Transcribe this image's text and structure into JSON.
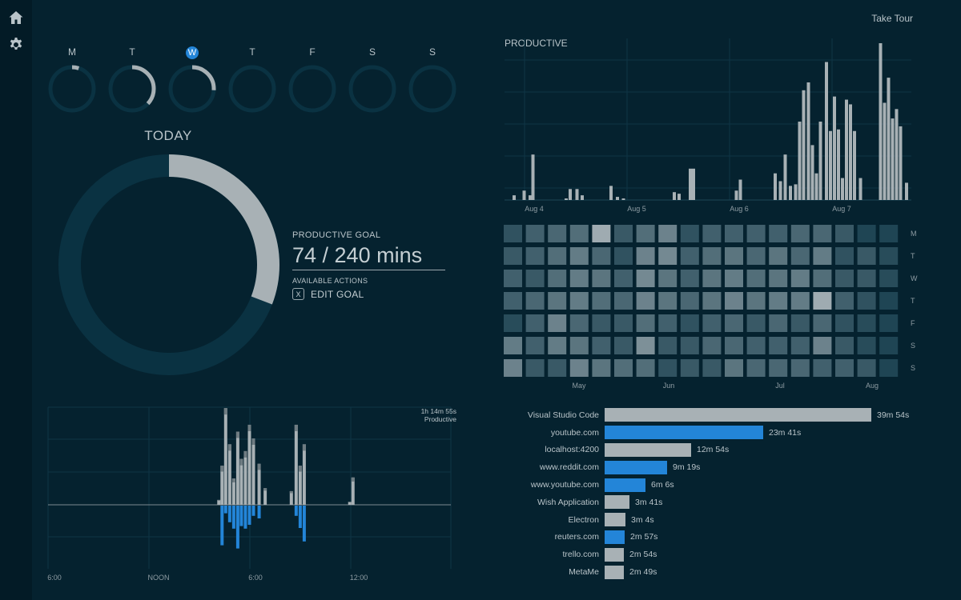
{
  "sidebar": {
    "items": [
      {
        "icon": "home-icon"
      },
      {
        "icon": "gear-icon"
      }
    ]
  },
  "header": {
    "take_tour": "Take Tour"
  },
  "week": {
    "days": [
      {
        "label": "M",
        "progress": 0.05,
        "active": false
      },
      {
        "label": "T",
        "progress": 0.37,
        "active": false
      },
      {
        "label": "W",
        "progress": 0.26,
        "active": true
      },
      {
        "label": "T",
        "progress": 0,
        "active": false
      },
      {
        "label": "F",
        "progress": 0,
        "active": false
      },
      {
        "label": "S",
        "progress": 0,
        "active": false
      },
      {
        "label": "S",
        "progress": 0,
        "active": false
      }
    ]
  },
  "today": {
    "title": "TODAY",
    "progress": 0.3083,
    "goal_label": "PRODUCTIVE GOAL",
    "goal_value": "74 / 240 mins",
    "actions_label": "AVAILABLE ACTIONS",
    "edit_goal_key": "X",
    "edit_goal_label": "EDIT GOAL"
  },
  "productive_chart": {
    "title": "PRODUCTIVE",
    "x_labels": [
      "Aug 4",
      "Aug 5",
      "Aug 6",
      "Aug 7"
    ],
    "values": [
      0,
      1,
      0,
      4,
      0,
      3,
      2,
      0,
      0,
      1,
      0,
      0,
      0,
      0,
      0,
      0,
      9,
      0,
      0,
      0,
      0,
      0,
      0,
      0,
      0,
      0,
      0,
      0,
      0,
      0,
      0,
      0,
      0,
      2,
      0,
      0,
      0,
      0,
      0,
      0,
      0,
      0,
      0,
      0,
      1,
      0,
      3,
      2,
      0,
      0,
      0,
      0,
      0,
      2,
      0,
      0,
      0,
      0,
      1,
      0,
      0,
      0,
      0,
      0,
      0,
      0,
      0,
      0,
      0,
      0,
      0,
      0,
      0,
      0,
      0,
      0,
      0,
      0,
      0,
      0,
      0,
      0,
      0,
      0,
      0,
      0,
      0,
      0,
      0,
      0,
      0,
      0,
      0,
      0,
      0,
      0,
      0,
      0,
      0,
      0,
      0,
      0,
      0,
      0,
      0,
      0,
      0,
      0,
      0,
      0,
      2,
      0,
      0,
      0,
      0,
      0,
      0,
      0,
      0,
      0,
      0,
      0,
      0,
      0,
      0,
      0,
      0,
      0,
      0,
      0,
      0,
      0,
      0,
      0,
      0,
      0,
      0,
      0,
      0,
      0,
      0,
      0,
      0,
      0,
      0,
      0,
      0,
      0,
      0,
      0,
      0,
      0,
      0,
      0,
      0,
      0,
      0,
      0,
      0,
      0,
      0,
      0,
      0,
      0,
      0,
      0,
      0,
      0,
      0,
      0,
      0,
      0,
      0,
      0,
      0,
      0,
      0,
      0,
      0,
      0,
      0,
      0,
      0,
      0,
      0,
      0,
      0,
      0,
      0,
      0,
      0,
      0,
      0,
      0,
      0,
      0,
      0,
      0,
      0,
      0,
      0,
      0,
      0,
      0,
      0,
      0,
      0,
      0,
      0,
      0,
      2,
      0,
      0,
      0,
      0,
      0,
      0,
      0,
      0,
      0,
      0,
      0,
      0,
      0,
      0,
      0,
      0,
      0,
      0,
      0,
      0,
      0,
      0,
      0,
      0,
      0,
      0,
      0,
      0,
      0,
      0,
      0,
      0,
      0,
      0,
      0,
      0,
      0,
      0,
      0,
      0,
      0,
      0,
      0,
      0,
      0,
      0,
      0,
      0,
      0,
      0,
      0,
      0,
      0,
      0,
      0,
      0,
      0,
      0,
      0,
      0,
      0,
      0,
      0,
      0,
      0,
      0,
      0,
      0,
      0,
      0,
      0,
      0,
      0,
      0,
      0,
      0,
      0,
      0,
      0,
      0,
      0,
      0,
      0,
      0,
      0,
      0,
      0,
      0,
      0,
      0,
      0,
      0,
      0,
      0,
      0,
      0,
      0,
      0,
      0,
      0,
      0,
      0,
      0,
      0,
      0,
      0,
      0,
      0,
      0,
      0,
      0,
      0,
      0,
      0,
      0,
      0,
      0,
      0,
      0,
      0,
      0,
      0,
      0,
      0,
      0,
      0,
      0,
      0,
      0,
      0,
      0,
      0,
      0,
      0,
      0,
      0,
      0,
      0,
      0,
      0,
      0,
      0,
      0,
      0,
      0,
      0,
      0,
      0,
      0,
      0,
      0,
      0,
      0,
      0,
      0,
      0,
      0,
      0,
      0,
      0,
      0,
      0,
      0,
      0,
      0,
      0,
      0,
      0,
      0,
      0,
      0,
      0,
      0,
      0,
      0,
      0,
      0,
      0,
      0,
      0,
      0,
      0,
      0,
      0,
      0,
      0,
      0,
      0,
      0,
      0,
      0,
      0,
      0,
      0,
      0,
      0,
      0,
      0,
      0,
      0,
      0,
      0,
      0,
      0,
      0,
      0,
      0,
      0,
      0,
      0,
      0,
      0,
      0,
      0,
      0,
      0,
      0,
      0,
      0,
      0,
      0,
      0,
      0,
      0,
      0,
      0,
      0,
      0,
      0,
      0,
      0,
      0,
      0,
      0,
      0,
      0,
      0,
      0,
      0,
      0,
      0,
      0,
      0,
      0,
      0,
      0,
      0,
      0,
      0,
      0,
      0,
      0,
      0,
      0,
      0,
      0,
      0,
      0,
      0,
      0,
      0,
      0,
      0,
      0,
      0,
      0,
      0,
      0,
      0,
      0,
      0,
      0,
      0,
      0,
      0,
      0,
      0,
      0,
      0,
      0,
      0,
      0,
      0,
      0,
      0,
      0,
      0,
      0,
      0,
      0,
      0,
      0,
      0,
      0,
      0,
      0,
      0,
      0,
      0,
      0,
      0,
      0,
      0,
      0,
      0,
      0,
      0,
      0,
      0,
      0,
      0,
      0,
      0,
      0,
      0,
      0,
      0,
      0,
      0,
      0,
      0,
      0,
      0,
      0,
      0,
      0,
      0,
      0,
      0,
      0,
      0,
      0,
      0,
      0,
      0,
      0,
      0,
      0,
      0,
      0,
      0,
      0,
      0,
      0,
      0,
      0,
      0,
      0,
      0,
      0,
      0,
      0,
      0,
      0,
      0,
      0,
      0,
      0,
      0,
      0,
      0,
      0,
      0,
      0,
      0,
      0,
      0,
      0,
      0,
      0,
      0,
      0,
      0,
      0,
      0
    ]
  },
  "productive_bars": [
    {
      "x": 0.02,
      "v": 0.03
    },
    {
      "x": 0.045,
      "v": 0.06
    },
    {
      "x": 0.06,
      "v": 0.03
    },
    {
      "x": 0.067,
      "v": 0.29
    },
    {
      "x": 0.15,
      "v": 0.01
    },
    {
      "x": 0.16,
      "v": 0.07
    },
    {
      "x": 0.177,
      "v": 0.07
    },
    {
      "x": 0.19,
      "v": 0.03
    },
    {
      "x": 0.262,
      "v": 0.09
    },
    {
      "x": 0.278,
      "v": 0.02
    },
    {
      "x": 0.293,
      "v": 0.01
    },
    {
      "x": 0.42,
      "v": 0.05
    },
    {
      "x": 0.432,
      "v": 0.04
    },
    {
      "x": 0.46,
      "v": 0.2
    },
    {
      "x": 0.468,
      "v": 0.2
    },
    {
      "x": 0.575,
      "v": 0.06
    },
    {
      "x": 0.585,
      "v": 0.13
    },
    {
      "x": 0.672,
      "v": 0.17
    },
    {
      "x": 0.685,
      "v": 0.12
    },
    {
      "x": 0.697,
      "v": 0.29
    },
    {
      "x": 0.71,
      "v": 0.09
    },
    {
      "x": 0.723,
      "v": 0.1
    },
    {
      "x": 0.733,
      "v": 0.5
    },
    {
      "x": 0.743,
      "v": 0.7
    },
    {
      "x": 0.755,
      "v": 0.75
    },
    {
      "x": 0.765,
      "v": 0.35
    },
    {
      "x": 0.775,
      "v": 0.17
    },
    {
      "x": 0.785,
      "v": 0.5
    },
    {
      "x": 0.8,
      "v": 0.88
    },
    {
      "x": 0.81,
      "v": 0.44
    },
    {
      "x": 0.82,
      "v": 0.66
    },
    {
      "x": 0.83,
      "v": 0.45
    },
    {
      "x": 0.84,
      "v": 0.14
    },
    {
      "x": 0.85,
      "v": 0.64
    },
    {
      "x": 0.86,
      "v": 0.61
    },
    {
      "x": 0.87,
      "v": 0.44
    },
    {
      "x": 0.885,
      "v": 0.14
    },
    {
      "x": 0.935,
      "v": 1.0
    },
    {
      "x": 0.945,
      "v": 0.62
    },
    {
      "x": 0.955,
      "v": 0.78
    },
    {
      "x": 0.965,
      "v": 0.52
    },
    {
      "x": 0.975,
      "v": 0.58
    },
    {
      "x": 0.985,
      "v": 0.47
    },
    {
      "x": 1.0,
      "v": 0.11
    }
  ],
  "heatmap": {
    "row_labels": [
      "M",
      "T",
      "W",
      "T",
      "F",
      "S",
      "S"
    ],
    "month_labels": [
      "May",
      "Jun",
      "Jul",
      "Aug"
    ],
    "values": [
      [
        0.2,
        0.3,
        0.35,
        0.4,
        0.85,
        0.25,
        0.4,
        0.55,
        0.2,
        0.3,
        0.3,
        0.3,
        0.3,
        0.35,
        0.35,
        0.25,
        0.1,
        0.1
      ],
      [
        0.25,
        0.3,
        0.4,
        0.5,
        0.35,
        0.2,
        0.55,
        0.6,
        0.3,
        0.4,
        0.45,
        0.35,
        0.45,
        0.35,
        0.5,
        0.2,
        0.25,
        0.15
      ],
      [
        0.3,
        0.25,
        0.4,
        0.5,
        0.45,
        0.3,
        0.6,
        0.45,
        0.3,
        0.45,
        0.5,
        0.4,
        0.45,
        0.5,
        0.4,
        0.25,
        0.25,
        0.15
      ],
      [
        0.3,
        0.35,
        0.45,
        0.5,
        0.4,
        0.35,
        0.55,
        0.45,
        0.35,
        0.45,
        0.55,
        0.45,
        0.5,
        0.5,
        0.85,
        0.3,
        0.2,
        0.1
      ],
      [
        0.15,
        0.3,
        0.55,
        0.35,
        0.25,
        0.25,
        0.4,
        0.3,
        0.2,
        0.3,
        0.35,
        0.25,
        0.35,
        0.25,
        0.35,
        0.2,
        0.15,
        0.1
      ],
      [
        0.5,
        0.3,
        0.5,
        0.45,
        0.3,
        0.25,
        0.65,
        0.25,
        0.25,
        0.35,
        0.35,
        0.3,
        0.3,
        0.3,
        0.55,
        0.25,
        0.15,
        0.1
      ],
      [
        0.55,
        0.25,
        0.25,
        0.55,
        0.45,
        0.4,
        0.4,
        0.2,
        0.25,
        0.25,
        0.45,
        0.35,
        0.35,
        0.35,
        0.3,
        0.3,
        0.25,
        0.1
      ]
    ]
  },
  "timeline": {
    "total": "1h 14m 55s",
    "label": "Productive",
    "x_labels": [
      "6:00",
      "NOON",
      "6:00",
      "12:00"
    ],
    "bars": [
      {
        "x": 0.42,
        "up": 0.05,
        "dn": 0.0
      },
      {
        "x": 0.428,
        "up": 0.4,
        "dn": 0.62
      },
      {
        "x": 0.437,
        "up": 0.99,
        "dn": 0.12
      },
      {
        "x": 0.447,
        "up": 0.62,
        "dn": 0.26
      },
      {
        "x": 0.457,
        "up": 0.27,
        "dn": 0.36
      },
      {
        "x": 0.467,
        "up": 0.75,
        "dn": 0.67
      },
      {
        "x": 0.476,
        "up": 0.47,
        "dn": 0.32
      },
      {
        "x": 0.486,
        "up": 0.55,
        "dn": 0.36
      },
      {
        "x": 0.496,
        "up": 0.82,
        "dn": 0.3
      },
      {
        "x": 0.506,
        "up": 0.68,
        "dn": 0.16
      },
      {
        "x": 0.52,
        "up": 0.42,
        "dn": 0.2
      },
      {
        "x": 0.535,
        "up": 0.17,
        "dn": 0.0
      },
      {
        "x": 0.6,
        "up": 0.14,
        "dn": 0.0
      },
      {
        "x": 0.612,
        "up": 0.82,
        "dn": 0.16
      },
      {
        "x": 0.622,
        "up": 0.4,
        "dn": 0.35
      },
      {
        "x": 0.632,
        "up": 0.62,
        "dn": 0.56
      },
      {
        "x": 0.745,
        "up": 0.03,
        "dn": 0.0
      },
      {
        "x": 0.753,
        "up": 0.28,
        "dn": 0.0
      }
    ]
  },
  "sites": [
    {
      "name": "Visual Studio Code",
      "duration": "39m 54s",
      "seconds": 2394,
      "color": "#a8b1b5"
    },
    {
      "name": "youtube.com",
      "duration": "23m 41s",
      "seconds": 1421,
      "color": "#2385d8"
    },
    {
      "name": "localhost:4200",
      "duration": "12m 54s",
      "seconds": 774,
      "color": "#a8b1b5"
    },
    {
      "name": "www.reddit.com",
      "duration": "9m 19s",
      "seconds": 559,
      "color": "#2385d8"
    },
    {
      "name": "www.youtube.com",
      "duration": "6m 6s",
      "seconds": 366,
      "color": "#2385d8"
    },
    {
      "name": "Wish Application",
      "duration": "3m 41s",
      "seconds": 221,
      "color": "#a8b1b5"
    },
    {
      "name": "Electron",
      "duration": "3m 4s",
      "seconds": 184,
      "color": "#a8b1b5"
    },
    {
      "name": "reuters.com",
      "duration": "2m 57s",
      "seconds": 177,
      "color": "#2385d8"
    },
    {
      "name": "trello.com",
      "duration": "2m 54s",
      "seconds": 174,
      "color": "#a8b1b5"
    },
    {
      "name": "MetaMe",
      "duration": "2m 49s",
      "seconds": 169,
      "color": "#a8b1b5"
    }
  ],
  "colors": {
    "background": "#05222f",
    "ring_track": "#0a3242",
    "ring_fill": "#a8b1b5",
    "accent_blue": "#2385d8",
    "grid": "#133a4a"
  }
}
